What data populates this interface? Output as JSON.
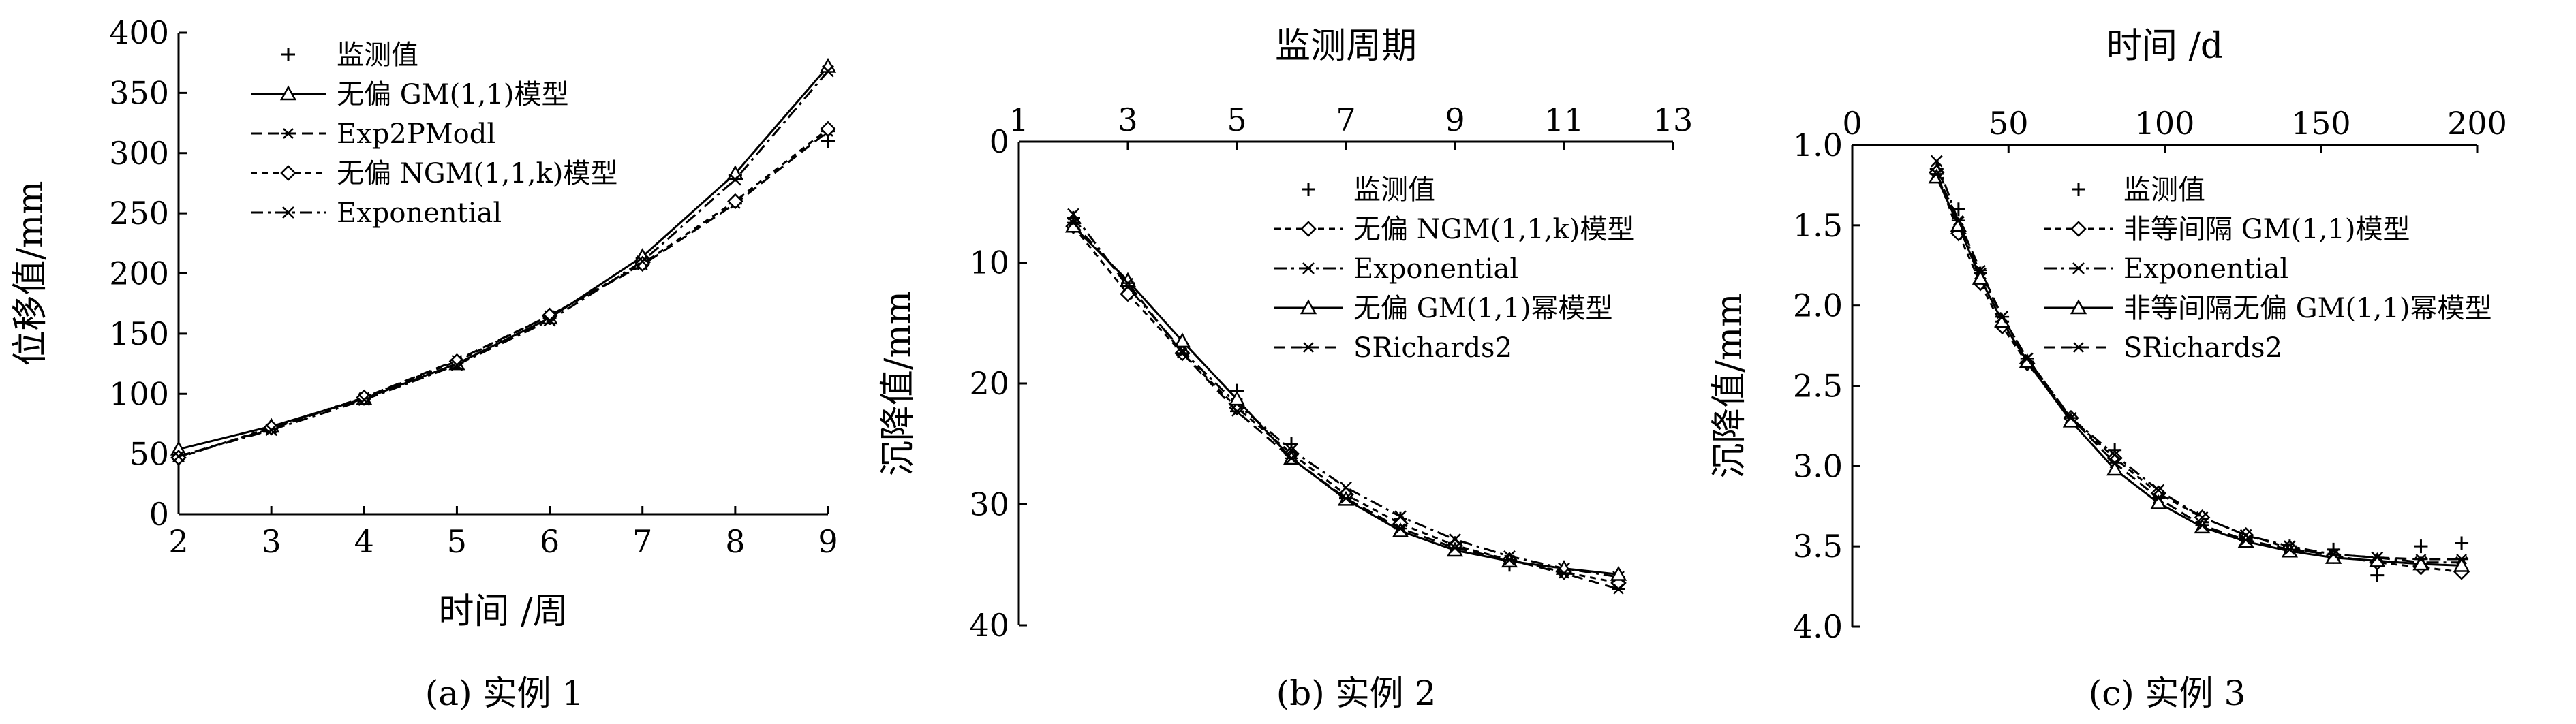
{
  "chart_data": [
    {
      "type": "line",
      "caption": "(a) 实例 1",
      "xlabel": "时间 /周",
      "ylabel": "位移值/mm",
      "xaxis_position": "bottom",
      "xlim": [
        2,
        9
      ],
      "ylim": [
        0,
        400
      ],
      "xticks": [
        2,
        3,
        4,
        5,
        6,
        7,
        8,
        9
      ],
      "yticks": [
        0,
        50,
        100,
        150,
        200,
        250,
        300,
        350,
        400
      ],
      "legend_position": "top-left",
      "x": [
        2,
        3,
        4,
        5,
        6,
        7,
        8,
        9
      ],
      "series": [
        {
          "name": "监测值",
          "style": "points-plus",
          "values": [
            50,
            72,
            96,
            126,
            163,
            213,
            282,
            310
          ]
        },
        {
          "name": "无偏 GM(1,1)模型",
          "style": "solid-triangle",
          "values": [
            54,
            73,
            96,
            125,
            163,
            214,
            283,
            372
          ]
        },
        {
          "name": "Exp2PModl",
          "style": "dashed-asterisk",
          "values": [
            48,
            71,
            97,
            128,
            165,
            207,
            258,
            318
          ]
        },
        {
          "name": "无偏 NGM(1,1,k)模型",
          "style": "dashed-diamond",
          "values": [
            47,
            72,
            97,
            127,
            165,
            208,
            260,
            320
          ]
        },
        {
          "name": "Exponential",
          "style": "dashdot-x",
          "values": [
            48,
            70,
            95,
            124,
            161,
            210,
            278,
            368
          ]
        }
      ]
    },
    {
      "type": "line",
      "caption": "(b) 实例 2",
      "xlabel": "监测周期",
      "ylabel": "沉降值/mm",
      "xaxis_position": "top",
      "yaxis_inverted": true,
      "xlim": [
        1,
        13
      ],
      "ylim": [
        0,
        40
      ],
      "xticks": [
        1,
        3,
        5,
        7,
        9,
        11,
        13
      ],
      "yticks": [
        0,
        10,
        20,
        30,
        40
      ],
      "legend_position": "top-right",
      "x": [
        2,
        3,
        4,
        5,
        6,
        7,
        8,
        9,
        10,
        11,
        12
      ],
      "series": [
        {
          "name": "监测值",
          "style": "points-plus",
          "values": [
            6.3,
            11.8,
            16.8,
            20.6,
            25.0,
            29.5,
            31.2,
            33.2,
            35.0,
            35.4,
            36.0
          ]
        },
        {
          "name": "无偏 NGM(1,1,k)模型",
          "style": "dashed-diamond",
          "values": [
            7.0,
            12.6,
            17.5,
            22.0,
            25.8,
            29.2,
            31.6,
            33.4,
            34.6,
            35.6,
            36.5
          ]
        },
        {
          "name": "Exponential",
          "style": "dashdot-x",
          "values": [
            6.0,
            12.0,
            17.3,
            21.7,
            25.5,
            28.6,
            31.0,
            32.9,
            34.3,
            35.3,
            36.0
          ]
        },
        {
          "name": "无偏 GM(1,1)幂模型",
          "style": "solid-triangle",
          "values": [
            7.0,
            11.5,
            16.5,
            21.3,
            26.2,
            29.6,
            32.2,
            33.8,
            34.7,
            35.3,
            35.8
          ]
        },
        {
          "name": "SRichards2",
          "style": "dashed-asterisk",
          "values": [
            6.7,
            11.7,
            17.5,
            22.3,
            26.2,
            29.5,
            32.0,
            33.6,
            34.6,
            35.7,
            37.0
          ]
        }
      ]
    },
    {
      "type": "line",
      "caption": "(c) 实例 3",
      "xlabel": "时间 /d",
      "ylabel": "沉降值/mm",
      "xaxis_position": "top",
      "yaxis_inverted": true,
      "xlim": [
        0,
        200
      ],
      "ylim": [
        1.0,
        4.0
      ],
      "xticks": [
        0,
        50,
        100,
        150,
        200
      ],
      "yticks": [
        1.0,
        1.5,
        2.0,
        2.5,
        3.0,
        3.5,
        4.0
      ],
      "legend_position": "top-right",
      "x": [
        27,
        34,
        41,
        48,
        56,
        70,
        84,
        98,
        112,
        126,
        140,
        154,
        168,
        182,
        195
      ],
      "series": [
        {
          "name": "监测值",
          "style": "points-plus",
          "values": [
            1.15,
            1.4,
            1.8,
            2.1,
            2.35,
            2.7,
            2.9,
            3.2,
            3.35,
            3.45,
            3.5,
            3.52,
            3.68,
            3.5,
            3.48
          ]
        },
        {
          "name": "非等间隔 GM(1,1)模型",
          "style": "dashed-diamond",
          "values": [
            1.17,
            1.55,
            1.86,
            2.13,
            2.36,
            2.7,
            2.95,
            3.17,
            3.32,
            3.43,
            3.51,
            3.56,
            3.6,
            3.63,
            3.66
          ]
        },
        {
          "name": "Exponential",
          "style": "dashdot-x",
          "values": [
            1.1,
            1.48,
            1.8,
            2.07,
            2.33,
            2.7,
            2.93,
            3.15,
            3.32,
            3.43,
            3.5,
            3.55,
            3.57,
            3.6,
            3.6
          ]
        },
        {
          "name": "非等间隔无偏 GM(1,1)幂模型",
          "style": "solid-triangle",
          "values": [
            1.2,
            1.5,
            1.83,
            2.1,
            2.35,
            2.72,
            3.02,
            3.23,
            3.38,
            3.47,
            3.53,
            3.57,
            3.59,
            3.61,
            3.62
          ]
        },
        {
          "name": "SRichards2",
          "style": "dashed-asterisk",
          "values": [
            1.18,
            1.47,
            1.78,
            2.07,
            2.33,
            2.7,
            2.98,
            3.2,
            3.37,
            3.46,
            3.52,
            3.55,
            3.57,
            3.58,
            3.58
          ]
        }
      ]
    }
  ]
}
